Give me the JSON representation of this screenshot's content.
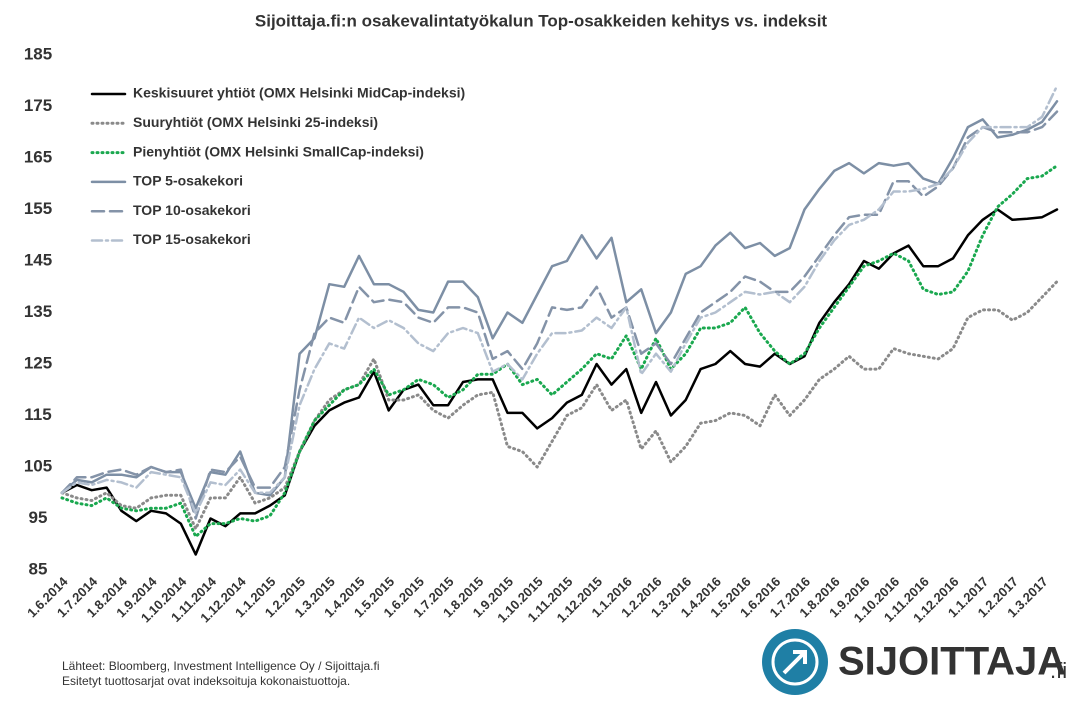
{
  "chart_data": {
    "type": "line",
    "title": "Sijoittaja.fi:n osakevalintatyökalun Top-osakkeiden kehitys vs. indeksit",
    "categories": [
      "1.6.2014",
      null,
      "1.7.2014",
      null,
      "1.8.2014",
      null,
      "1.9.2014",
      null,
      "1.10.2014",
      null,
      "1.11.2014",
      null,
      "1.12.2014",
      null,
      "1.1.2015",
      null,
      "1.2.2015",
      null,
      "1.3.2015",
      null,
      "1.4.2015",
      null,
      "1.5.2015",
      null,
      "1.6.2015",
      null,
      "1.7.2015",
      null,
      "1.8.2015",
      null,
      "1.9.2015",
      null,
      "1.10.2015",
      null,
      "1.11.2015",
      null,
      "1.12.2015",
      null,
      "1.1.2016",
      null,
      "1.2.2016",
      null,
      "1.3.2016",
      null,
      "1.4.2016",
      null,
      "1.5.2016",
      null,
      "1.6.2016",
      null,
      "1.7.2016",
      null,
      "1.8.2016",
      null,
      "1.9.2016",
      null,
      "1.10.2016",
      null,
      "1.11.2016",
      null,
      "1.12.2016",
      null,
      "1.1.2017",
      null,
      "1.2.2017",
      null,
      "1.3.2017",
      null
    ],
    "series": [
      {
        "name": "Keskisuuret yhtiöt (OMX Helsinki MidCap-indeksi)",
        "color": "#000000",
        "style": "solid",
        "values": [
          100,
          101.5,
          100.5,
          101,
          96.5,
          94.5,
          96.5,
          96,
          94,
          88,
          95,
          93.5,
          96,
          96,
          97.5,
          99.5,
          108,
          113,
          116,
          117.5,
          118.5,
          123.5,
          116,
          120,
          121,
          117,
          117,
          121.5,
          122,
          122,
          115.5,
          115.5,
          112.5,
          114.5,
          117.5,
          119,
          125,
          121,
          124,
          115.5,
          121.5,
          115,
          118,
          124,
          125,
          127.5,
          125,
          124.5,
          127,
          125,
          126.5,
          133,
          137,
          140.5,
          145,
          143.5,
          146.5,
          148,
          144,
          144,
          145.5,
          150,
          153,
          155,
          153,
          153.2,
          153.5,
          155
        ]
      },
      {
        "name": "Suuryhtiöt (OMX Helsinki 25-indeksi)",
        "color": "#8a8a8a",
        "style": "dotted",
        "values": [
          100,
          99,
          98.5,
          100,
          97.5,
          97,
          99,
          99.5,
          99.5,
          93,
          99,
          99,
          103,
          98,
          99,
          101,
          108,
          114,
          118,
          120,
          121,
          126,
          118,
          118,
          119,
          116,
          114.5,
          117,
          119,
          119.5,
          109,
          108,
          105,
          110,
          115,
          116.5,
          121,
          116,
          118,
          108.5,
          112,
          106,
          109,
          113.5,
          114,
          115.5,
          115,
          113,
          119,
          115,
          118,
          122,
          124,
          126.5,
          124,
          124,
          128,
          127,
          126.5,
          126,
          128,
          134,
          135.5,
          135.5,
          133.5,
          135,
          138,
          141
        ]
      },
      {
        "name": "Pienyhtiöt (OMX Helsinki SmallCap-indeksi)",
        "color": "#1aa84f",
        "style": "dotted",
        "values": [
          99,
          98,
          97.5,
          99,
          97,
          96.5,
          97,
          97,
          98,
          91.5,
          94,
          94,
          95,
          94.5,
          95.5,
          100,
          108,
          114,
          117,
          120,
          121,
          124,
          119,
          120,
          122,
          121,
          118.5,
          120,
          123,
          123,
          125,
          121,
          122,
          119,
          121.5,
          124,
          127,
          126,
          130.5,
          124,
          130,
          124,
          127,
          132,
          132,
          133,
          136,
          131,
          127.5,
          125,
          127,
          132,
          136,
          140,
          144,
          145,
          146.5,
          145,
          139.5,
          138.5,
          139,
          143,
          150,
          155.5,
          158,
          161,
          161.5,
          163.5
        ]
      },
      {
        "name": "TOP 5-osakekori",
        "color": "#7d8fa5",
        "style": "solid",
        "values": [
          100,
          102.5,
          102,
          103.5,
          103.5,
          103,
          105,
          104,
          104,
          97,
          104,
          103.5,
          108,
          100,
          99.5,
          103,
          127,
          130,
          140.5,
          140,
          146,
          140.5,
          140.5,
          139,
          135.5,
          135,
          141,
          141,
          138,
          130,
          135,
          133,
          138.5,
          144,
          145,
          150,
          145.5,
          149.5,
          137,
          139.5,
          131,
          135,
          142.5,
          144,
          148,
          150.5,
          147.5,
          148.5,
          146,
          147.5,
          155,
          159,
          162.5,
          164,
          162,
          164,
          163.5,
          164,
          161,
          160,
          165,
          171,
          172.5,
          169,
          169.5,
          170.5,
          172,
          176
        ]
      },
      {
        "name": "TOP 10-osakekori",
        "color": "#8493a8",
        "style": "dashed",
        "values": [
          100,
          103,
          103,
          104,
          104.5,
          103.5,
          105,
          104,
          104.5,
          95,
          104.5,
          104,
          107,
          101,
          101,
          105,
          120,
          131,
          134,
          133,
          140,
          137,
          137.5,
          137,
          134,
          133,
          136,
          136,
          135,
          126,
          127.5,
          124,
          129,
          136,
          135.5,
          136,
          140,
          134,
          136,
          127,
          129,
          125,
          130,
          135,
          137,
          139,
          142,
          141,
          139,
          139,
          142,
          146,
          150,
          153.5,
          154,
          154,
          160.5,
          160.5,
          157.5,
          159.5,
          163,
          169,
          171,
          170,
          170,
          170,
          171,
          174
        ]
      },
      {
        "name": "TOP 15-osakekori",
        "color": "#b3bfcf",
        "style": "dashdot",
        "values": [
          100,
          102,
          101.5,
          102.5,
          102,
          101,
          104,
          103.5,
          103,
          96,
          102,
          101.5,
          104.5,
          100,
          100,
          103,
          117,
          124,
          129,
          128,
          134,
          132,
          133.5,
          132,
          129,
          127.5,
          131,
          132,
          131,
          123.5,
          125,
          122,
          127,
          131,
          131,
          131.5,
          134,
          132,
          136,
          123,
          127,
          123.5,
          129,
          134,
          135,
          137,
          139,
          138.5,
          139,
          137,
          140,
          145,
          149,
          152,
          153,
          155,
          158.5,
          158.5,
          159,
          160,
          163,
          168,
          171,
          171,
          171,
          171,
          173,
          179
        ]
      }
    ],
    "ylim": [
      85,
      185
    ],
    "yticks": [
      85,
      95,
      105,
      115,
      125,
      135,
      145,
      155,
      165,
      175,
      185
    ],
    "grid": false,
    "legend": "upper left",
    "source": [
      "Lähteet: Bloomberg, Investment Intelligence Oy / Sijoittaja.fi",
      "Esitetyt tuottosarjat ovat indeksoituja kokonaistuottoja."
    ],
    "logo": {
      "name": "SIJOITTAJA",
      "suffix": ".fi"
    }
  }
}
